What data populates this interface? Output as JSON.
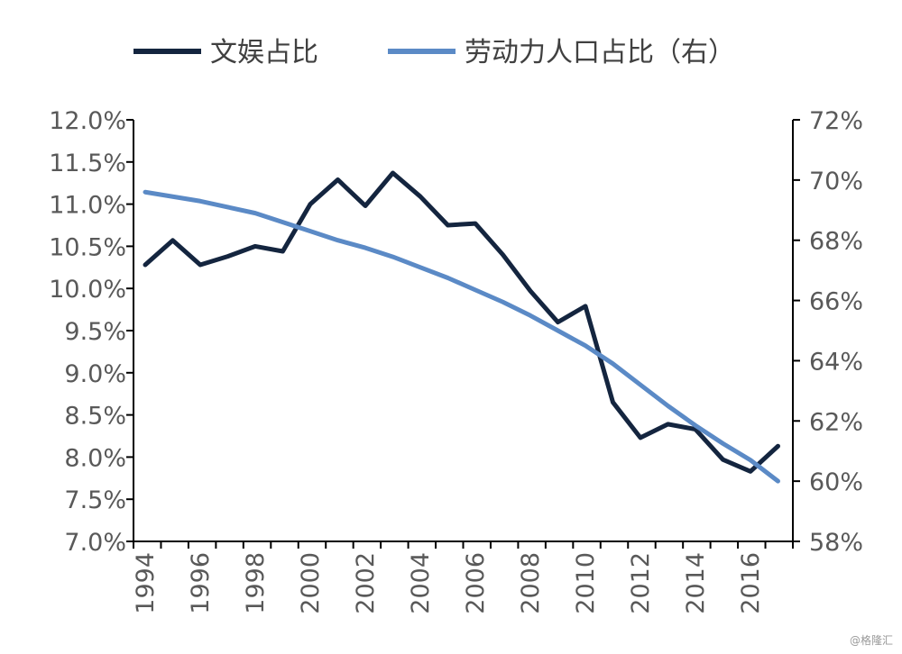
{
  "chart_data": {
    "type": "line",
    "x": [
      1994,
      1995,
      1996,
      1997,
      1998,
      1999,
      2000,
      2001,
      2002,
      2003,
      2004,
      2005,
      2006,
      2007,
      2008,
      2009,
      2010,
      2011,
      2012,
      2013,
      2014,
      2015,
      2016,
      2017
    ],
    "x_tick_labels": [
      "1994",
      "1996",
      "1998",
      "2000",
      "2002",
      "2004",
      "2006",
      "2008",
      "2010",
      "2012",
      "2014",
      "2016"
    ],
    "series": [
      {
        "name": "文娱占比",
        "axis": "left",
        "color": "#14253f",
        "values": [
          10.28,
          10.57,
          10.28,
          10.38,
          10.5,
          10.44,
          11.0,
          11.29,
          10.98,
          11.37,
          11.09,
          10.75,
          10.77,
          10.4,
          9.97,
          9.6,
          9.79,
          8.65,
          8.23,
          8.39,
          8.33,
          7.97,
          7.83,
          8.13
        ]
      },
      {
        "name": "劳动力人口占比（右）",
        "axis": "right",
        "color": "#5b8ac6",
        "values": [
          69.6,
          69.45,
          69.3,
          69.1,
          68.9,
          68.6,
          68.3,
          68.0,
          67.75,
          67.45,
          67.1,
          66.75,
          66.35,
          65.95,
          65.5,
          65.0,
          64.5,
          63.9,
          63.2,
          62.5,
          61.85,
          61.25,
          60.7,
          60.0
        ]
      }
    ],
    "y_left": {
      "range": [
        7.0,
        12.0
      ],
      "ticks": [
        "7.0%",
        "7.5%",
        "8.0%",
        "8.5%",
        "9.0%",
        "9.5%",
        "10.0%",
        "10.5%",
        "11.0%",
        "11.5%",
        "12.0%"
      ]
    },
    "y_right": {
      "range": [
        58,
        72
      ],
      "ticks": [
        "58%",
        "60%",
        "62%",
        "64%",
        "66%",
        "68%",
        "70%",
        "72%"
      ]
    },
    "legend_position": "top",
    "grid": false
  },
  "watermark": "@格隆汇"
}
